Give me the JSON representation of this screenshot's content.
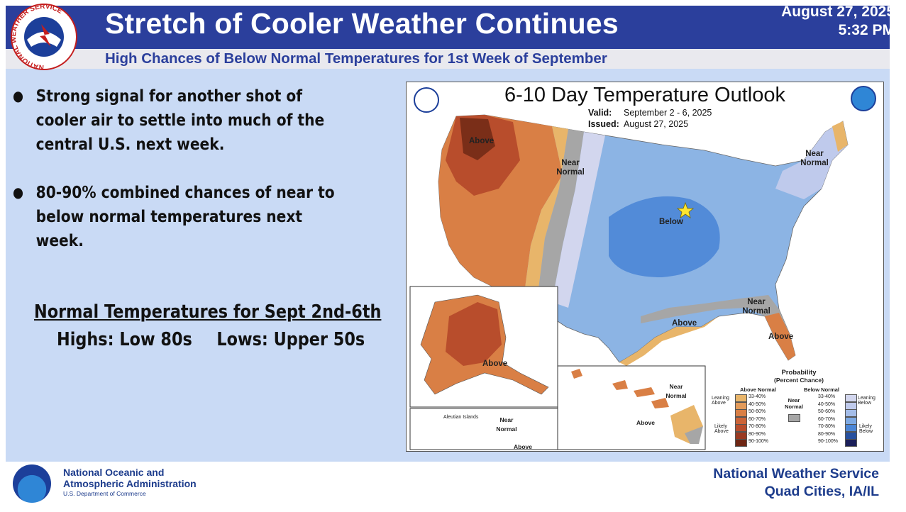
{
  "header": {
    "title": "Stretch of Cooler Weather Continues",
    "date": "August 27, 2025",
    "time": "5:32 PM",
    "subtitle": "High Chances of Below Normal Temperatures for 1st Week of September",
    "logo_text": "NATIONAL WEATHER SERVICE"
  },
  "bullets": [
    "Strong signal for another shot of cooler air to settle into much of the central U.S. next week.",
    "80-90% combined chances of near to below normal temperatures next week."
  ],
  "normals": {
    "title": "Normal Temperatures for Sept 2nd-6th",
    "highs": "Highs: Low 80s",
    "lows": "Lows: Upper 50s"
  },
  "map": {
    "title": "6-10 Day Temperature Outlook",
    "valid_label": "Valid:",
    "valid_value": "September 2 - 6, 2025",
    "issued_label": "Issued:",
    "issued_value": "August 27, 2025",
    "labels": {
      "above_nw": "Above",
      "near_normal_west": "Near Normal",
      "near_normal_ne": "Near Normal",
      "below": "Below",
      "near_normal_se": "Near Normal",
      "above_texas": "Above",
      "above_florida": "Above",
      "above_alaska": "Above",
      "aleutian": "Aleutian Islands",
      "near_normal_aleutian": "Near Normal",
      "above_aleutian": "Above",
      "near_normal_hawaii": "Near Normal",
      "above_hawaii": "Above"
    },
    "legend": {
      "title": "Probability",
      "subtitle": "(Percent Chance)",
      "above_header": "Above Normal",
      "below_header": "Below Normal",
      "near_header": "Near Normal",
      "leaning_above": "Leaning Above",
      "likely_above": "Likely Above",
      "leaning_below": "Leaning Below",
      "likely_below": "Likely Below",
      "ranges": [
        "33-40%",
        "40-50%",
        "50-60%",
        "60-70%",
        "70-80%",
        "80-90%",
        "90-100%"
      ],
      "above_colors": [
        "#e8b56a",
        "#e39b5a",
        "#d97f45",
        "#cc6438",
        "#b84d2c",
        "#9a3a22",
        "#6e2614"
      ],
      "below_colors": [
        "#d2d6ee",
        "#bfcaec",
        "#a4bde9",
        "#7eaae4",
        "#4b86d6",
        "#27509f",
        "#1b1f5a"
      ],
      "near_color": "#a6a6a6"
    }
  },
  "footer": {
    "org_line1": "National Oceanic and",
    "org_line2": "Atmospheric Administration",
    "dept": "U.S. Department of Commerce",
    "office_line1": "National Weather Service",
    "office_line2": "Quad Cities, IA/IL",
    "logo_text": "NOAA"
  }
}
